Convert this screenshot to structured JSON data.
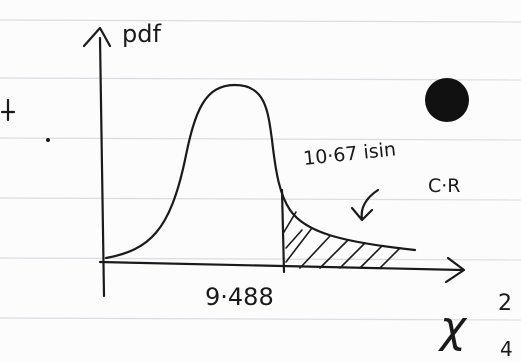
{
  "y_axis_label": "pdf",
  "critical_value": "9·488",
  "note": {
    "line1": "10·67 isin",
    "line2": "C·R"
  },
  "x_axis_label": {
    "symbol": "χ",
    "superscript": "2",
    "subscript": "4"
  }
}
